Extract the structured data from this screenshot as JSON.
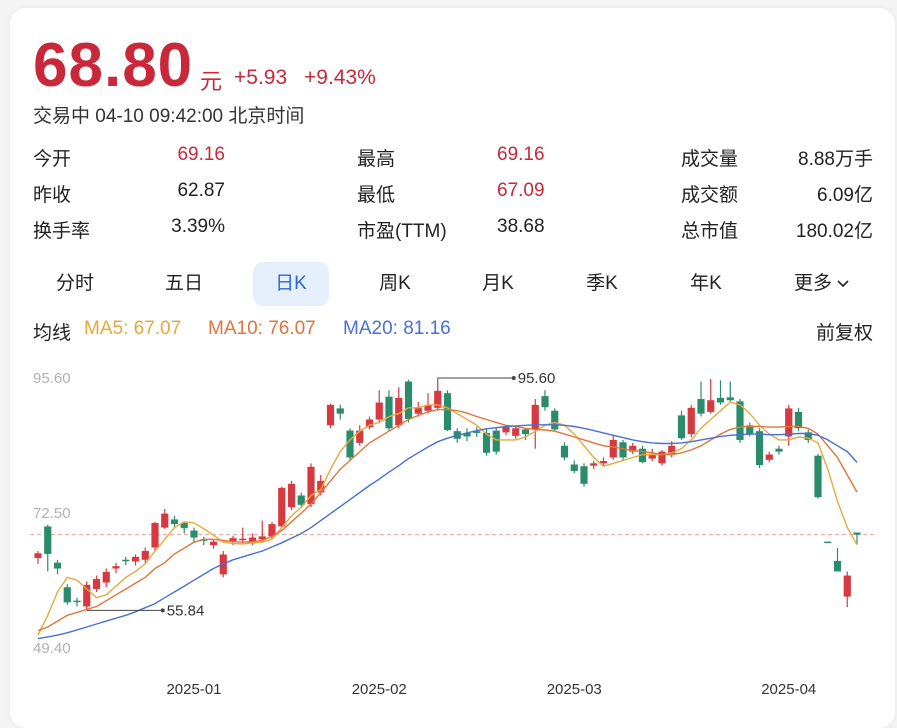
{
  "quote": {
    "price": "68.80",
    "unit": "元",
    "change": "+5.93",
    "change_pct": "+9.43%",
    "status": "交易中 04-10 09:42:00 北京时间",
    "color": "#c8283a"
  },
  "stats": {
    "rows": [
      [
        {
          "label": "今开",
          "value": "69.16",
          "color": "#c8283a"
        },
        {
          "label": "最高",
          "value": "69.16",
          "color": "#c8283a"
        },
        {
          "label": "成交量",
          "value": "8.88万手"
        }
      ],
      [
        {
          "label": "昨收",
          "value": "62.87"
        },
        {
          "label": "最低",
          "value": "67.09",
          "color": "#c8283a"
        },
        {
          "label": "成交额",
          "value": "6.09亿"
        }
      ],
      [
        {
          "label": "换手率",
          "value": "3.39%"
        },
        {
          "label": "市盈(TTM)",
          "value": "38.68"
        },
        {
          "label": "总市值",
          "value": "180.02亿"
        }
      ]
    ]
  },
  "tabs": {
    "items": [
      "分时",
      "五日",
      "日K",
      "周K",
      "月K",
      "季K",
      "年K",
      "更多"
    ],
    "selected": 2
  },
  "ma_label": "均线",
  "adjust": "前复权",
  "chart_data": {
    "type": "candlestick",
    "up_color": "#d6393f",
    "down_color": "#2b8c6c",
    "ylim": [
      49.4,
      95.6
    ],
    "yticks": [
      {
        "value": 95.6,
        "label": "95.60"
      },
      {
        "value": 72.5,
        "label": "72.50"
      },
      {
        "value": 49.4,
        "label": "49.40"
      }
    ],
    "grid": false,
    "reference_line": 68.8,
    "reference_color": "#eaa0a4",
    "categories": [
      null,
      null,
      null,
      null,
      null,
      null,
      null,
      null,
      null,
      null,
      null,
      null,
      null,
      null,
      null,
      null,
      "2025-01",
      null,
      null,
      null,
      null,
      null,
      null,
      null,
      null,
      null,
      null,
      null,
      null,
      null,
      null,
      null,
      null,
      null,
      null,
      "2025-02",
      null,
      null,
      null,
      null,
      null,
      null,
      null,
      null,
      null,
      null,
      null,
      null,
      null,
      null,
      null,
      null,
      null,
      null,
      null,
      "2025-03",
      null,
      null,
      null,
      null,
      null,
      null,
      null,
      null,
      null,
      null,
      null,
      null,
      null,
      null,
      null,
      null,
      null,
      null,
      null,
      null,
      null,
      "2025-04",
      null,
      null,
      null,
      null,
      null,
      null,
      null
    ],
    "open": [
      64.8,
      70.2,
      64,
      59.8,
      57.5,
      56.5,
      59.5,
      60.6,
      63,
      64.5,
      64.2,
      64.5,
      66.6,
      70,
      71.4,
      70.8,
      69.5,
      68,
      67,
      62,
      67.6,
      68,
      67.3,
      68,
      68.5,
      70.2,
      73.5,
      75.5,
      74,
      76,
      87.5,
      90.4,
      86.6,
      84.5,
      87.2,
      88.5,
      92.4,
      87.5,
      95,
      89.5,
      90,
      90.5,
      93,
      86.5,
      86.2,
      86.5,
      86.2,
      86.6,
      86.3,
      85.7,
      86.8,
      86.8,
      92.5,
      90,
      84,
      80.8,
      80.5,
      80.6,
      81,
      82,
      84.6,
      83,
      83.5,
      81.8,
      81,
      82.5,
      89.2,
      86,
      92,
      89.8,
      92.2,
      92.3,
      91.6,
      87.5,
      86.5,
      81.6,
      83.5,
      85.6,
      89.8,
      86.3,
      82.3,
      67.6,
      64.3,
      58.2,
      69.16
    ],
    "high": [
      66,
      70.5,
      64.5,
      60.3,
      58,
      60.8,
      61.8,
      63,
      64,
      65,
      65.4,
      66.6,
      71,
      73.2,
      72,
      71,
      70,
      68.4,
      68,
      66,
      68.6,
      70,
      69,
      71.2,
      71,
      77,
      78,
      76,
      81,
      79,
      91.2,
      91,
      87,
      87.5,
      89,
      93.5,
      93.5,
      94,
      95.3,
      91.5,
      93,
      95.6,
      93.5,
      87,
      87,
      87.2,
      87,
      87,
      87.5,
      87.3,
      87,
      92,
      93.5,
      90.4,
      84.6,
      81.5,
      81,
      81.4,
      82,
      85.8,
      85,
      84.5,
      84,
      83.5,
      83.3,
      84.8,
      90,
      91,
      95,
      95.4,
      95.2,
      95,
      92,
      88,
      87,
      83,
      84,
      91,
      90.5,
      86.8,
      82.6,
      67.6,
      66.5,
      62.5,
      69.16
    ],
    "low": [
      63.8,
      62.5,
      62,
      56.8,
      56.5,
      55.84,
      59,
      59.8,
      62.2,
      63.6,
      63.5,
      64,
      66,
      69.8,
      70,
      69,
      67.5,
      67,
      66.4,
      61.5,
      67,
      67.3,
      67,
      67.5,
      68,
      70,
      73,
      73.5,
      73.5,
      75.5,
      87,
      88.5,
      81.5,
      84,
      86.8,
      88,
      86.5,
      87,
      88,
      89,
      89.5,
      90,
      86.5,
      84.5,
      84.8,
      85.5,
      82.3,
      82.5,
      85.8,
      85.2,
      85,
      83.5,
      90,
      86.5,
      81.5,
      79.3,
      77,
      80,
      80.5,
      81.6,
      81.5,
      82.6,
      81,
      81.4,
      80.6,
      82,
      85,
      85.5,
      89,
      89.5,
      91,
      91.5,
      84.5,
      85.6,
      80.2,
      81.2,
      82.5,
      84,
      86.5,
      84.5,
      75,
      67.4,
      62.5,
      56.4,
      67.09
    ],
    "close": [
      65.6,
      65.5,
      63,
      57.2,
      57.3,
      60.2,
      61.2,
      62.4,
      63.4,
      64.3,
      65,
      66,
      70.8,
      72.4,
      70.6,
      69.9,
      68.3,
      67.8,
      67.6,
      65.4,
      68.2,
      68.1,
      68.3,
      68.5,
      70.6,
      76.8,
      77.5,
      73.9,
      80.4,
      78,
      91,
      89.5,
      82,
      86.6,
      88.5,
      91.4,
      87,
      92.2,
      88.6,
      90.5,
      91,
      93.4,
      86.7,
      85.2,
      85.6,
      86.2,
      82.8,
      83,
      87.2,
      87,
      86,
      91,
      90.6,
      86.8,
      82,
      79.7,
      77.5,
      81,
      81.4,
      85,
      82,
      84,
      81.2,
      82.5,
      83,
      84,
      85.3,
      90.5,
      89.5,
      91.8,
      91.4,
      91.8,
      85,
      86,
      80.7,
      82.5,
      83,
      90.4,
      87,
      85,
      75.2,
      67.4,
      62.5,
      61.8,
      68.8
    ],
    "series": [
      {
        "name": "MA5: 67.07",
        "color": "#e8a93c",
        "values": [
          51.6,
          55,
          59,
          61.5,
          61,
          59.5,
          58,
          58.5,
          60,
          61.5,
          62.5,
          63.8,
          66,
          68,
          70,
          71,
          70.8,
          69.8,
          68.7,
          67.5,
          67.3,
          67.2,
          67.4,
          67.5,
          68,
          70,
          72,
          73.5,
          75.5,
          76.5,
          80,
          83,
          85,
          86.5,
          87.5,
          88,
          89,
          89.5,
          90.5,
          90.5,
          91,
          91,
          90.5,
          89.5,
          88.5,
          87.5,
          86,
          85,
          85,
          85,
          85.5,
          86.5,
          87.5,
          88,
          87.5,
          86,
          84,
          82,
          80.5,
          81,
          81.5,
          82,
          82.5,
          82.5,
          82.5,
          82.8,
          83.5,
          85,
          87,
          88.5,
          90,
          91.5,
          91,
          89.5,
          87.5,
          86,
          85,
          85,
          85.5,
          85.3,
          84.5,
          80,
          74.5,
          70,
          67.07
        ]
      },
      {
        "name": "MA10: 76.07",
        "color": "#e0753c",
        "values": [
          52.4,
          53,
          54,
          55,
          55.5,
          56,
          56.5,
          57.5,
          58.5,
          59.5,
          60.5,
          61.5,
          63,
          64,
          65.5,
          66.5,
          67.5,
          68,
          68,
          67.8,
          67.6,
          67.5,
          67.6,
          67.8,
          68.5,
          69.5,
          71,
          72.5,
          74,
          76,
          78,
          80,
          81.5,
          83,
          84.5,
          85.5,
          86.5,
          87.5,
          88.5,
          89.2,
          89.8,
          90.2,
          90.2,
          90,
          89.6,
          89,
          88.5,
          88,
          87.5,
          87.3,
          87,
          86.8,
          86.7,
          86.5,
          86,
          85.5,
          85,
          84.5,
          84,
          83.8,
          83.5,
          83.2,
          83,
          82.8,
          82.5,
          82.5,
          82.8,
          83.3,
          84,
          85,
          86,
          86.8,
          87.2,
          87.3,
          87.3,
          87.2,
          87.2,
          87.3,
          87.3,
          87,
          86,
          84,
          82,
          79,
          76.07
        ]
      },
      {
        "name": "MA20: 81.16",
        "color": "#4a6fd6",
        "values": [
          51,
          51.3,
          51.6,
          52,
          52.5,
          53,
          53.5,
          54,
          54.5,
          55,
          55.6,
          56.3,
          57,
          58,
          59,
          60,
          61,
          62,
          63,
          63.8,
          64.5,
          65,
          65.5,
          66,
          66.7,
          67.4,
          68.2,
          69,
          70,
          71.2,
          72.4,
          73.6,
          74.8,
          76,
          77.2,
          78.3,
          79.5,
          80.6,
          81.8,
          82.8,
          83.8,
          84.7,
          85.3,
          85.8,
          86.2,
          86.6,
          86.9,
          87.1,
          87.3,
          87.4,
          87.5,
          87.6,
          87.6,
          87.6,
          87.5,
          87.3,
          87,
          86.6,
          86.2,
          85.8,
          85.4,
          85,
          84.7,
          84.5,
          84.4,
          84.4,
          84.5,
          84.7,
          85,
          85.3,
          85.6,
          85.8,
          85.9,
          86,
          86,
          85.9,
          85.9,
          86,
          86.1,
          86.1,
          85.8,
          85,
          84,
          83,
          81.16
        ]
      }
    ],
    "annotations": [
      {
        "value": 95.6,
        "label": "95.60"
      },
      {
        "value": 55.84,
        "label": "55.84"
      }
    ]
  }
}
